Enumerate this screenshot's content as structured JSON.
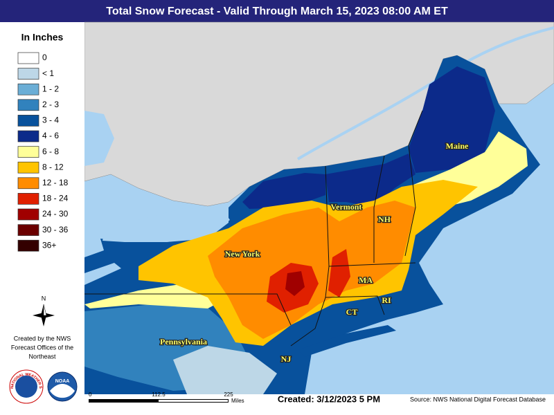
{
  "header": {
    "title": "Total Snow Forecast - Valid Through March 15, 2023 08:00 AM ET"
  },
  "legend": {
    "title": "In Inches",
    "items": [
      {
        "label": "0",
        "color": "#ffffff"
      },
      {
        "label": "< 1",
        "color": "#bdd7e7"
      },
      {
        "label": "1 - 2",
        "color": "#6baed6"
      },
      {
        "label": "2 - 3",
        "color": "#3182bd"
      },
      {
        "label": "3 - 4",
        "color": "#08519c"
      },
      {
        "label": "4 - 6",
        "color": "#0c2a8a"
      },
      {
        "label": "6 - 8",
        "color": "#ffff99"
      },
      {
        "label": "8 - 12",
        "color": "#ffc400"
      },
      {
        "label": "12 - 18",
        "color": "#ff8c00"
      },
      {
        "label": "18 - 24",
        "color": "#e02000"
      },
      {
        "label": "24 - 30",
        "color": "#a00000"
      },
      {
        "label": "30 - 36",
        "color": "#6b0000"
      },
      {
        "label": "36+",
        "color": "#330000"
      }
    ]
  },
  "map": {
    "state_labels": [
      "Maine",
      "Vermont",
      "NH",
      "New York",
      "MA",
      "CT",
      "RI",
      "Pennsylvania",
      "NJ"
    ]
  },
  "compass": "N",
  "credit": [
    "Created by the NWS",
    "Forecast Offices of the",
    "Northeast"
  ],
  "logos": {
    "nws": "NATIONAL WEATHER SERVICE",
    "noaa": "NOAA"
  },
  "scale": {
    "ticks": [
      "0",
      "112.5",
      "225"
    ],
    "unit": "Miles"
  },
  "footer": {
    "created": "Created: 3/12/2023 5 PM",
    "source": "Source: NWS National Digital Forecast Database"
  }
}
